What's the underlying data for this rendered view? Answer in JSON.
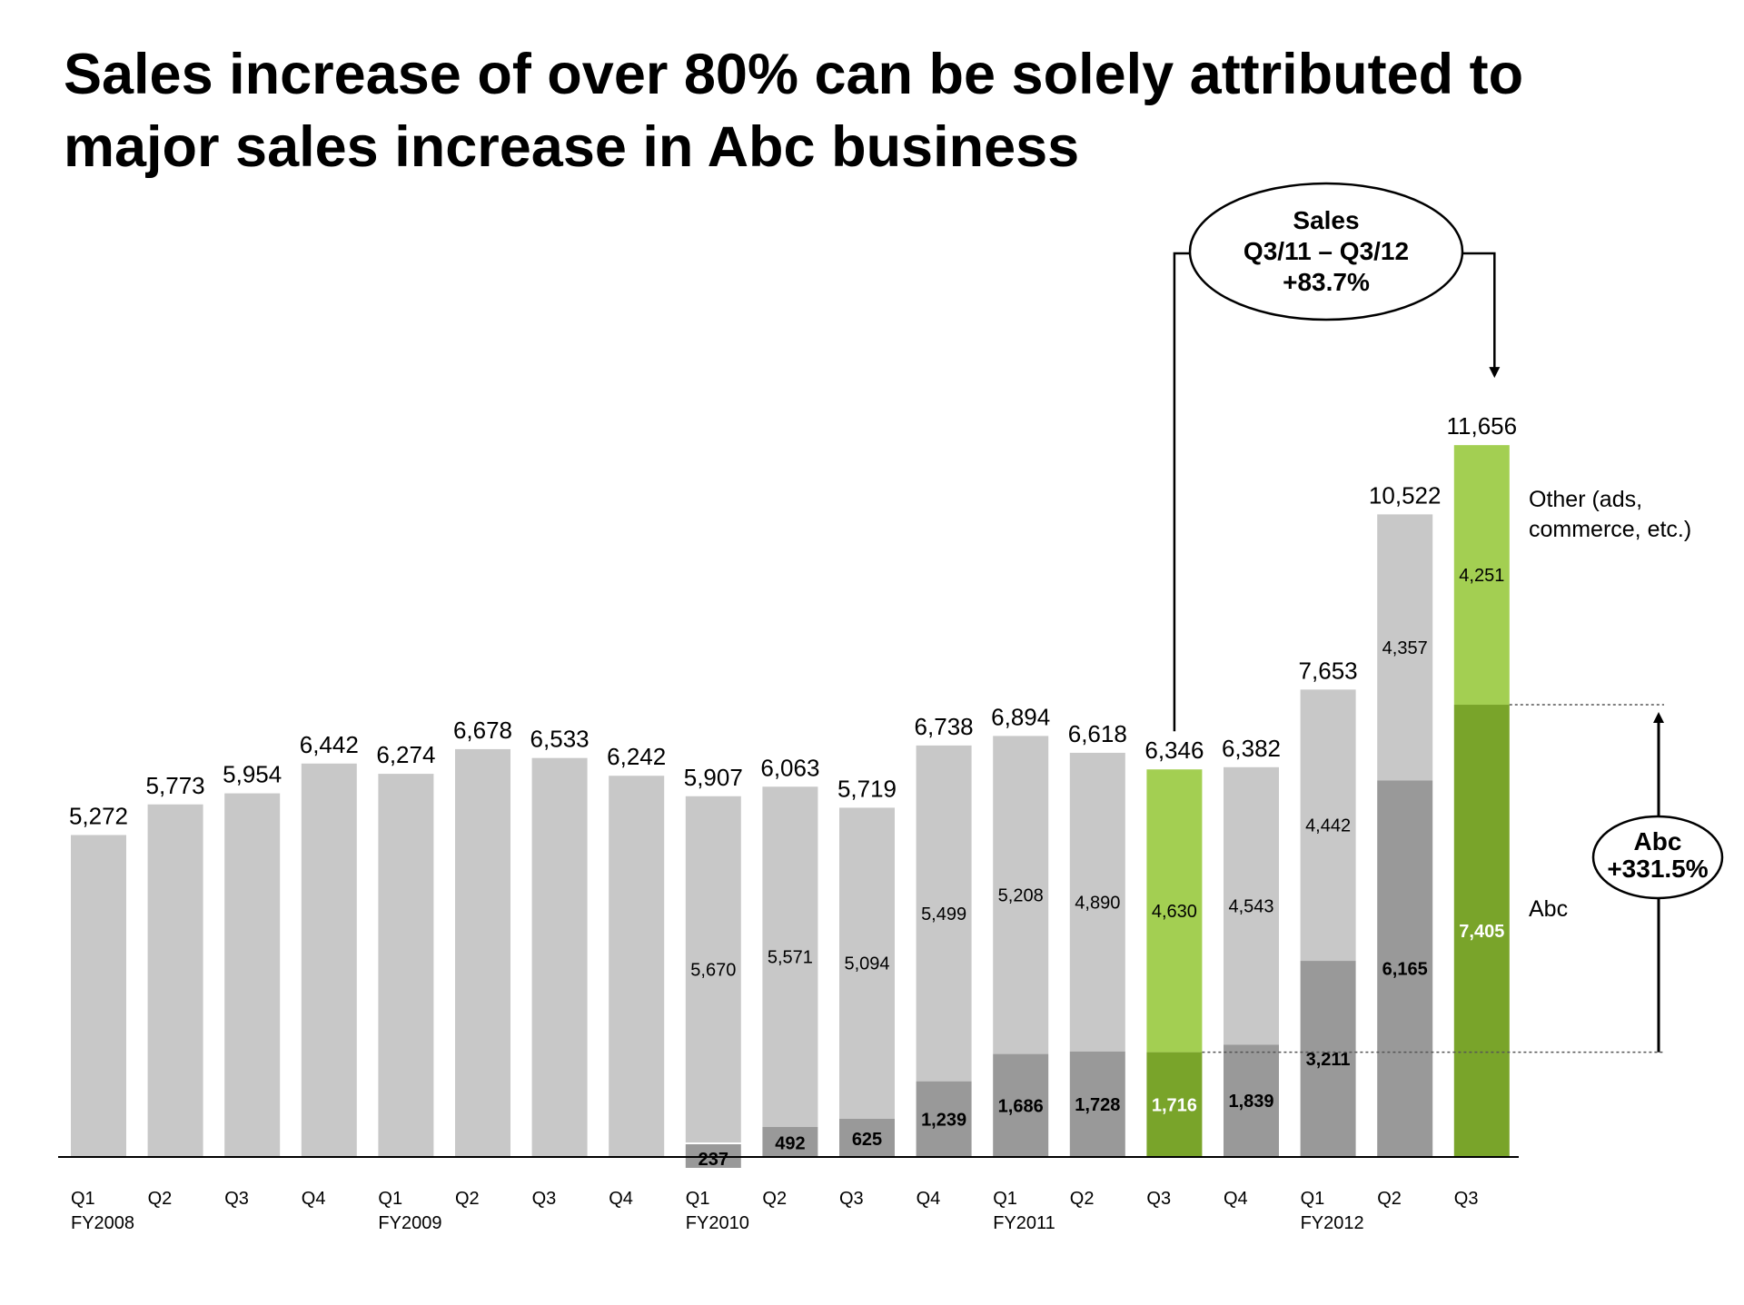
{
  "title": "Sales increase of over 80% can be solely attributed to major sales increase in Abc business",
  "chart_data": {
    "type": "bar",
    "stacked": true,
    "categories": [
      "Q1 FY2008",
      "Q2",
      "Q3",
      "Q4",
      "Q1 FY2009",
      "Q2",
      "Q3",
      "Q4",
      "Q1 FY2010",
      "Q2",
      "Q3",
      "Q4",
      "Q1 FY2011",
      "Q2",
      "Q3",
      "Q4",
      "Q1 FY2012",
      "Q2",
      "Q3"
    ],
    "tick_labels": [
      [
        "Q1",
        "FY2008"
      ],
      [
        "Q2",
        ""
      ],
      [
        "Q3",
        ""
      ],
      [
        "Q4",
        ""
      ],
      [
        "Q1",
        "FY2009"
      ],
      [
        "Q2",
        ""
      ],
      [
        "Q3",
        ""
      ],
      [
        "Q4",
        ""
      ],
      [
        "Q1",
        "FY2010"
      ],
      [
        "Q2",
        ""
      ],
      [
        "Q3",
        ""
      ],
      [
        "Q4",
        ""
      ],
      [
        "Q1",
        "FY2011"
      ],
      [
        "Q2",
        ""
      ],
      [
        "Q3",
        ""
      ],
      [
        "Q4",
        ""
      ],
      [
        "Q1",
        "FY2012"
      ],
      [
        "Q2",
        ""
      ],
      [
        "Q3",
        ""
      ]
    ],
    "totals": [
      "5,272",
      "5,773",
      "5,954",
      "6,442",
      "6,274",
      "6,678",
      "6,533",
      "6,242",
      "5,907",
      "6,063",
      "5,719",
      "6,738",
      "6,894",
      "6,618",
      "6,346",
      "6,382",
      "7,653",
      "10,522",
      "11,656"
    ],
    "series": [
      {
        "name": "Abc",
        "values": [
          null,
          null,
          null,
          null,
          null,
          null,
          null,
          null,
          237,
          492,
          625,
          1239,
          1686,
          1728,
          1716,
          1839,
          3211,
          6165,
          7405
        ],
        "labels": [
          "",
          "",
          "",
          "",
          "",
          "",
          "",
          "",
          "237",
          "492",
          "625",
          "1,239",
          "1,686",
          "1,728",
          "1,716",
          "1,839",
          "3,211",
          "6,165",
          "7,405"
        ]
      },
      {
        "name": "Other (ads, commerce, etc.)",
        "values": [
          5272,
          5773,
          5954,
          6442,
          6274,
          6678,
          6533,
          6242,
          5670,
          5571,
          5094,
          5499,
          5208,
          4890,
          4630,
          4543,
          4442,
          4357,
          4251
        ],
        "labels": [
          "",
          "",
          "",
          "",
          "",
          "",
          "",
          "",
          "5,670",
          "5,571",
          "5,094",
          "5,499",
          "5,208",
          "4,890",
          "4,630",
          "4,543",
          "4,442",
          "4,357",
          "4,251"
        ]
      }
    ],
    "legend": [
      "Other (ads,",
      "commerce, etc.)",
      "Abc"
    ],
    "highlighted_categories": [
      14,
      18
    ],
    "callouts": {
      "sales": [
        "Sales",
        "Q3/11 – Q3/12",
        "+83.7%"
      ],
      "abc": [
        "Abc",
        "+331.5%"
      ]
    },
    "colors": {
      "total_gray": "#c8c8c8",
      "abc_gray": "#999999",
      "highlight_light": "#a3cf52",
      "highlight_dark": "#79a42a",
      "axis": "#000000"
    },
    "ylim": [
      0,
      12000
    ]
  }
}
